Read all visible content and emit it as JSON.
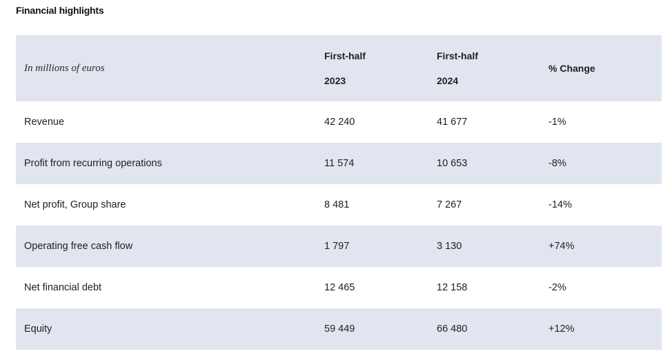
{
  "title": "Financial highlights",
  "table": {
    "unit_label": "In millions of euros",
    "columns": [
      {
        "line1": "First-half",
        "line2": "2023"
      },
      {
        "line1": "First-half",
        "line2": "2024"
      },
      {
        "label": "% Change"
      }
    ],
    "rows": [
      {
        "label": "Revenue",
        "h1_2023": "42 240",
        "h1_2024": "41 677",
        "change": "-1%"
      },
      {
        "label": "Profit from recurring operations",
        "h1_2023": "11 574",
        "h1_2024": "10 653",
        "change": "-8%"
      },
      {
        "label": "Net profit, Group share",
        "h1_2023": "8 481",
        "h1_2024": "7 267",
        "change": "-14%"
      },
      {
        "label": "Operating free cash flow",
        "h1_2023": "1 797",
        "h1_2024": "3 130",
        "change": "+74%"
      },
      {
        "label": "Net financial debt",
        "h1_2023": "12 465",
        "h1_2024": "12 158",
        "change": "-2%"
      },
      {
        "label": "Equity",
        "h1_2023": "59 449",
        "h1_2024": "66 480",
        "change": "+12%"
      }
    ],
    "colors": {
      "shaded_row": "#e1e5ef",
      "plain_row": "#ffffff"
    }
  }
}
